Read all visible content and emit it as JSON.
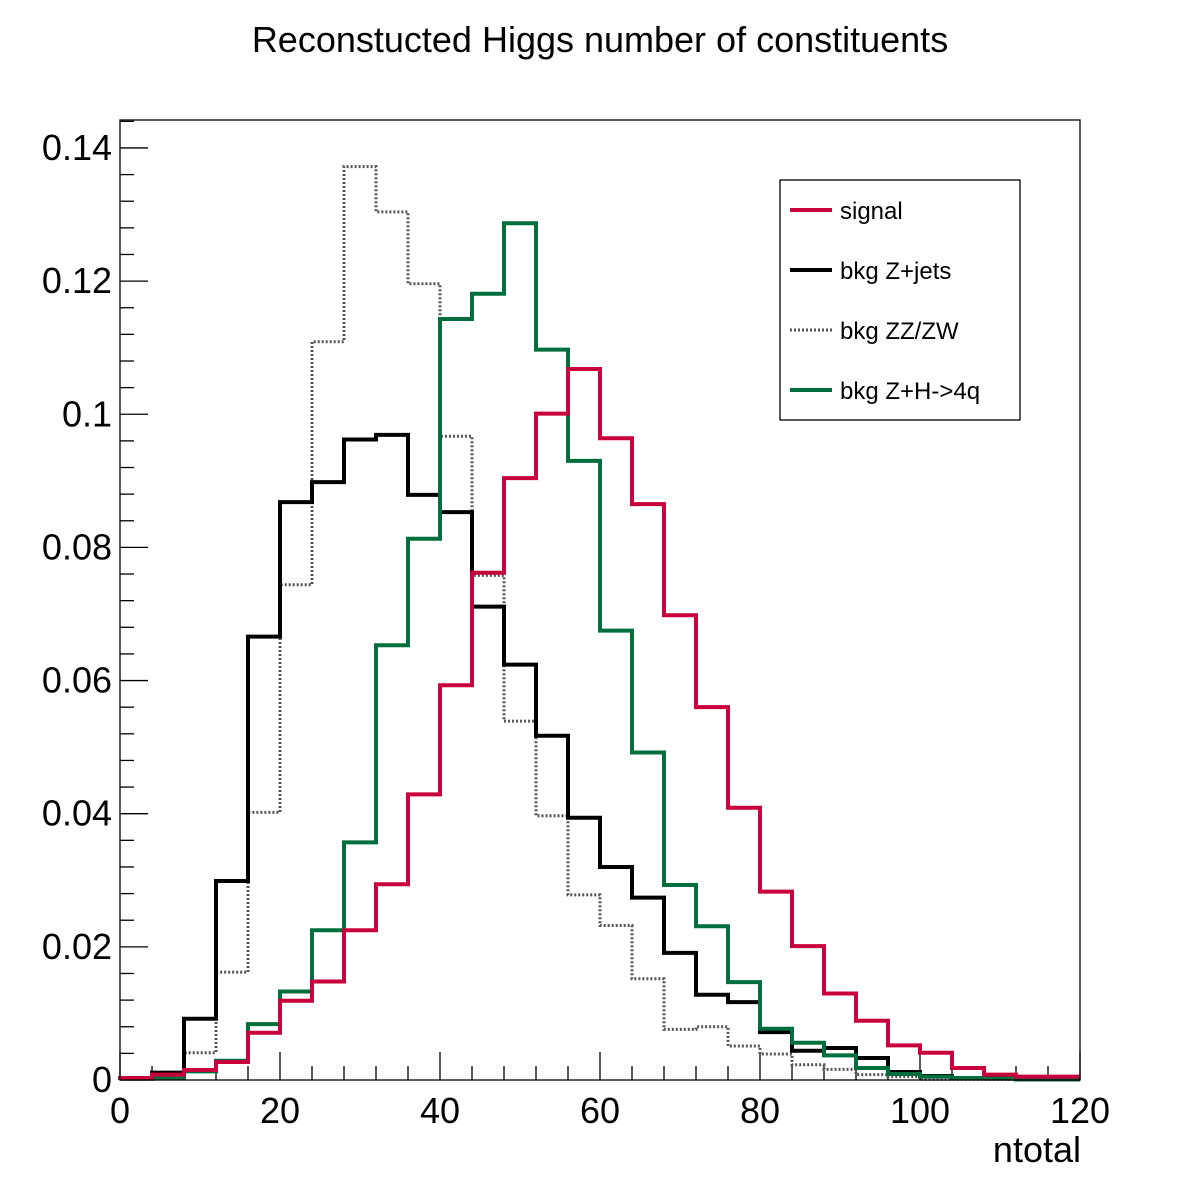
{
  "chart_data": {
    "type": "histogram",
    "title": "Reconstucted Higgs number of constituents",
    "xlabel": "ntotal",
    "ylabel": "",
    "xlim": [
      0,
      120
    ],
    "ylim": [
      0,
      0.1442
    ],
    "bin_width": 4,
    "bin_edges": [
      0,
      4,
      8,
      12,
      16,
      20,
      24,
      28,
      32,
      36,
      40,
      44,
      48,
      52,
      56,
      60,
      64,
      68,
      72,
      76,
      80,
      84,
      88,
      92,
      96,
      100,
      104,
      108,
      112,
      116,
      120
    ],
    "x_ticks": [
      0,
      20,
      40,
      60,
      80,
      100,
      120
    ],
    "x_tick_labels": [
      "0",
      "20",
      "40",
      "60",
      "80",
      "100",
      "120"
    ],
    "y_ticks": [
      0,
      0.02,
      0.04,
      0.06,
      0.08,
      0.1,
      0.12,
      0.14
    ],
    "y_tick_labels": [
      "0",
      "0.02",
      "0.04",
      "0.06",
      "0.08",
      "0.1",
      "0.12",
      "0.14"
    ],
    "grid": false,
    "legend": {
      "position": "top-right",
      "entries": [
        "signal",
        "bkg Z+jets",
        "bkg ZZ/ZW",
        "bkg Z+H->4q"
      ]
    },
    "series": [
      {
        "name": "signal",
        "color": "#c8003c",
        "style": "solid",
        "values": [
          0.0003,
          0.0008,
          0.0015,
          0.0027,
          0.0071,
          0.0119,
          0.0148,
          0.0225,
          0.0294,
          0.0429,
          0.0593,
          0.0762,
          0.0904,
          0.1001,
          0.1068,
          0.0964,
          0.0865,
          0.0698,
          0.056,
          0.0409,
          0.0283,
          0.0201,
          0.013,
          0.0089,
          0.0052,
          0.0041,
          0.0018,
          0.0008,
          0.0005,
          0.0005
        ]
      },
      {
        "name": "bkg Z+jets",
        "color": "#000000",
        "style": "solid",
        "values": [
          0.0003,
          0.0011,
          0.0092,
          0.0299,
          0.0666,
          0.0868,
          0.0898,
          0.0962,
          0.0969,
          0.0879,
          0.0853,
          0.0711,
          0.0624,
          0.0517,
          0.0394,
          0.032,
          0.0274,
          0.0191,
          0.0128,
          0.0117,
          0.0072,
          0.0044,
          0.0048,
          0.0033,
          0.0012,
          0.0006,
          0.0003,
          0.0003,
          0.0001,
          0.0001
        ]
      },
      {
        "name": "bkg ZZ/ZW",
        "color": "#555555",
        "style": "dotted",
        "values": [
          0.0001,
          0.0003,
          0.0041,
          0.0162,
          0.0402,
          0.0744,
          0.1109,
          0.1372,
          0.1304,
          0.1196,
          0.0967,
          0.0758,
          0.0539,
          0.0397,
          0.0278,
          0.0232,
          0.0152,
          0.0076,
          0.008,
          0.0051,
          0.0039,
          0.0023,
          0.0016,
          0.0008,
          0.0005,
          0.0001,
          0.0001,
          0.0001,
          0.0001,
          0.0001
        ]
      },
      {
        "name": "bkg Z+H->4q",
        "color": "#006e3c",
        "style": "solid",
        "values": [
          0.0002,
          0.0004,
          0.0013,
          0.0029,
          0.0084,
          0.0133,
          0.0225,
          0.0357,
          0.0653,
          0.0813,
          0.1143,
          0.1181,
          0.1287,
          0.1097,
          0.093,
          0.0675,
          0.0492,
          0.0293,
          0.0231,
          0.0147,
          0.0077,
          0.0056,
          0.0037,
          0.0018,
          0.0009,
          0.0005,
          0.0003,
          0.0002,
          0.0001,
          0.0001
        ]
      }
    ]
  }
}
